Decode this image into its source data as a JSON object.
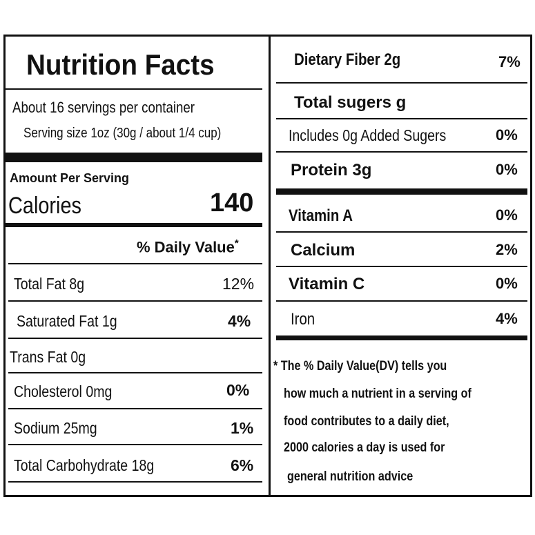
{
  "title": "Nutrition Facts",
  "servings": "About 16 servings per container",
  "serving_size": "Serving size 1oz (30g / about 1/4 cup)",
  "amount_per_serving": "Amount Per Serving",
  "calories": {
    "label": "Calories",
    "value": "140"
  },
  "daily_value_header": "% Daily Value",
  "asterisk": "*",
  "left_nutrients": [
    {
      "name": "Total Fat 8g",
      "dv": "12%"
    },
    {
      "name": "Saturated Fat 1g",
      "dv": "4%"
    },
    {
      "name": "Trans Fat 0g",
      "dv": ""
    },
    {
      "name": "Cholesterol  0mg",
      "dv": "0%"
    },
    {
      "name": "Sodium  25mg",
      "dv": "1%"
    },
    {
      "name": "Total Carbohydrate  18g",
      "dv": "6%"
    }
  ],
  "right_nutrients": [
    {
      "name": "Dietary Fiber 2g",
      "dv": "7%"
    },
    {
      "name": "Total sugers g",
      "dv": ""
    },
    {
      "name": "Includes 0g Added Sugers",
      "dv": "0%"
    },
    {
      "name": "Protein 3g",
      "dv": "0%"
    }
  ],
  "vitamins": [
    {
      "name": "Vitamin A",
      "dv": "0%"
    },
    {
      "name": "Calcium",
      "dv": "2%"
    },
    {
      "name": "Vitamin C",
      "dv": "0%"
    },
    {
      "name": "Iron",
      "dv": "4%"
    }
  ],
  "footnote": [
    "* The % Daily Value(DV)  tells you",
    "how much a nutrient in a serving of",
    "food contributes to a daily diet,",
    "2000 calories a day is used for",
    "general nutrition advice"
  ]
}
